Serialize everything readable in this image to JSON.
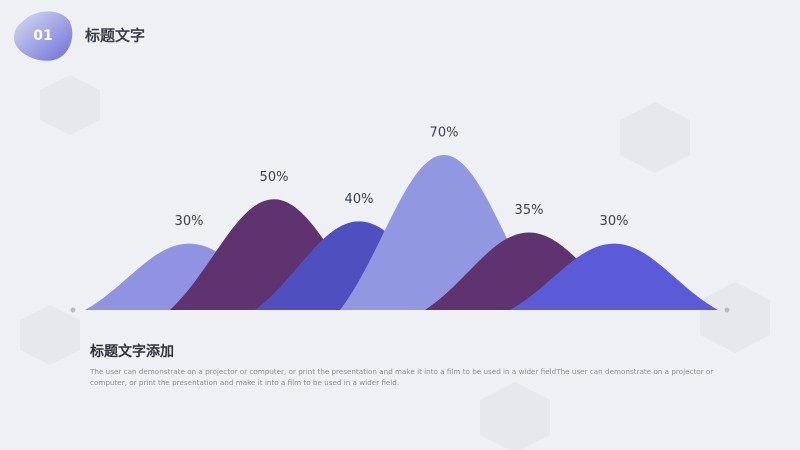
{
  "header": {
    "number": "01",
    "title": "标题文字"
  },
  "chart_data": {
    "type": "mountain",
    "values": [
      30,
      50,
      40,
      70,
      35,
      30
    ],
    "value_labels": [
      "30%",
      "50%",
      "40%",
      "70%",
      "35%",
      "30%"
    ],
    "colors": [
      "#8f93e2",
      "#5f3270",
      "#4f4fbf",
      "#9297e2",
      "#5f3270",
      "#5b5bd8"
    ]
  },
  "body": {
    "title": "标题文字添加",
    "text": "The user can demonstrate on a projector or computer, or print the presentation and make it into a film to be used in a wider fieldThe user can demonstrate on a projector or computer, or print the presentation and make it into a film to be used in a wider field."
  }
}
